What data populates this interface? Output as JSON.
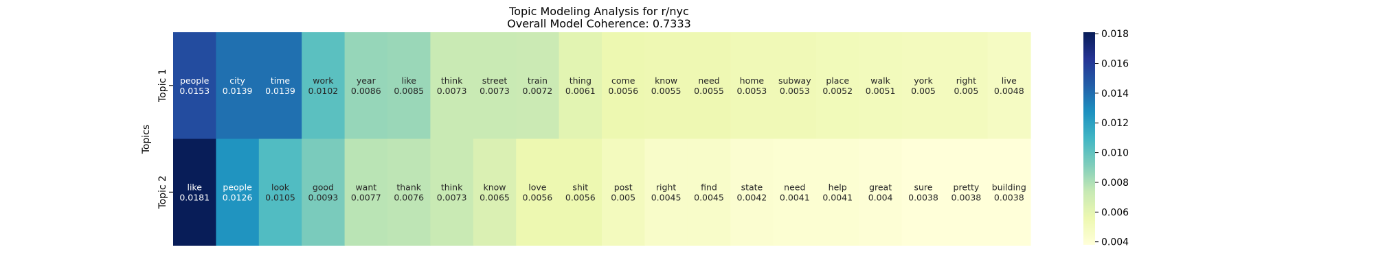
{
  "chart_data": {
    "type": "heatmap",
    "title": "Topic Modeling Analysis for r/nyc",
    "subtitle": "Overall Model Coherence: 0.7333",
    "ylabel": "Topics",
    "rows": [
      {
        "label": "Topic 1",
        "cells": [
          {
            "word": "people",
            "value": 0.0153
          },
          {
            "word": "city",
            "value": 0.0139
          },
          {
            "word": "time",
            "value": 0.0139
          },
          {
            "word": "work",
            "value": 0.0102
          },
          {
            "word": "year",
            "value": 0.0086
          },
          {
            "word": "like",
            "value": 0.0085
          },
          {
            "word": "think",
            "value": 0.0073
          },
          {
            "word": "street",
            "value": 0.0073
          },
          {
            "word": "train",
            "value": 0.0072
          },
          {
            "word": "thing",
            "value": 0.0061
          },
          {
            "word": "come",
            "value": 0.0056
          },
          {
            "word": "know",
            "value": 0.0055
          },
          {
            "word": "need",
            "value": 0.0055
          },
          {
            "word": "home",
            "value": 0.0053
          },
          {
            "word": "subway",
            "value": 0.0053
          },
          {
            "word": "place",
            "value": 0.0052
          },
          {
            "word": "walk",
            "value": 0.0051
          },
          {
            "word": "york",
            "value": 0.005
          },
          {
            "word": "right",
            "value": 0.005
          },
          {
            "word": "live",
            "value": 0.0048
          }
        ]
      },
      {
        "label": "Topic 2",
        "cells": [
          {
            "word": "like",
            "value": 0.0181
          },
          {
            "word": "people",
            "value": 0.0126
          },
          {
            "word": "look",
            "value": 0.0105
          },
          {
            "word": "good",
            "value": 0.0093
          },
          {
            "word": "want",
            "value": 0.0077
          },
          {
            "word": "thank",
            "value": 0.0076
          },
          {
            "word": "think",
            "value": 0.0073
          },
          {
            "word": "know",
            "value": 0.0065
          },
          {
            "word": "love",
            "value": 0.0056
          },
          {
            "word": "shit",
            "value": 0.0056
          },
          {
            "word": "post",
            "value": 0.005
          },
          {
            "word": "right",
            "value": 0.0045
          },
          {
            "word": "find",
            "value": 0.0045
          },
          {
            "word": "state",
            "value": 0.0042
          },
          {
            "word": "need",
            "value": 0.0041
          },
          {
            "word": "help",
            "value": 0.0041
          },
          {
            "word": "great",
            "value": 0.004
          },
          {
            "word": "sure",
            "value": 0.0038
          },
          {
            "word": "pretty",
            "value": 0.0038
          },
          {
            "word": "building",
            "value": 0.0038
          }
        ]
      }
    ],
    "colorbar": {
      "colormap": "YlGnBu",
      "range": [
        0.0038,
        0.0181
      ],
      "ticks": [
        "0.004",
        "0.006",
        "0.008",
        "0.010",
        "0.012",
        "0.014",
        "0.016",
        "0.018"
      ]
    }
  }
}
